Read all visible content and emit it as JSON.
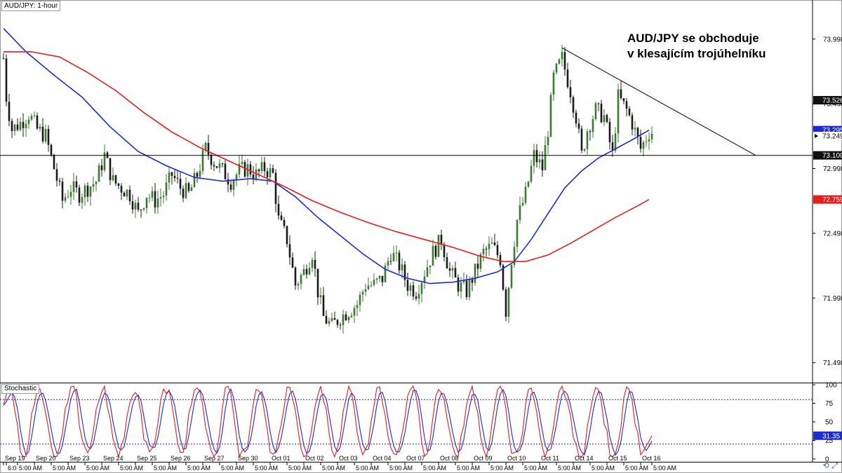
{
  "symbol_label": "AUD/JPY: 1-hour",
  "indicator_label": "Stochastic",
  "annotation": {
    "line1": "AUD/JPY se obchoduje",
    "line2": "v klesajícím trojúhelníku"
  },
  "corner_icons": "⟲ ⤢",
  "colors": {
    "bull": "#3c7a32",
    "bear": "#1a1a1a",
    "ma_fast": "#1c2bd1",
    "ma_slow": "#e81c1c",
    "stoch_k": "#e81c1c",
    "stoch_d": "#1c2bd1",
    "level_line": "#000000",
    "ma_slow_tag": "#e81c1c",
    "ma_fast_tag": "#1c2bd1",
    "price_tag": "#ffffff",
    "stoch_levels": "#2222cc"
  },
  "chart_data": [
    {
      "type": "candlestick",
      "title": "AUD/JPY: 1-hour",
      "ylim": [
        71.35,
        74.3
      ],
      "y_ticks": [
        {
          "value": 73.998,
          "label": "73.998"
        },
        {
          "value": 73.498,
          "label": "73.498"
        },
        {
          "value": 72.998,
          "label": "72.998"
        },
        {
          "value": 72.498,
          "label": "72.498"
        },
        {
          "value": 71.998,
          "label": "71.998"
        },
        {
          "value": 71.498,
          "label": "71.498"
        }
      ],
      "price_tags": [
        {
          "value": 73.526,
          "label": "73.526",
          "style": "dark"
        },
        {
          "value": 73.295,
          "label": "73.295",
          "style": "blue"
        },
        {
          "value": 73.249,
          "label": "73.249",
          "style": "white"
        },
        {
          "value": 73.1,
          "label": "73.100",
          "style": "dark"
        },
        {
          "value": 72.759,
          "label": "72.759",
          "style": "red"
        }
      ],
      "x_labels": [
        {
          "bar": 0,
          "label": "Sep 19"
        },
        {
          "bar": 11,
          "label": "Sep 20"
        },
        {
          "bar": 23,
          "label": "Sep 23"
        },
        {
          "bar": 35,
          "label": "Sep 24"
        },
        {
          "bar": 47,
          "label": "Sep 25"
        },
        {
          "bar": 59,
          "label": "Sep 26"
        },
        {
          "bar": 71,
          "label": "Sep 27"
        },
        {
          "bar": 83,
          "label": "Sep 30"
        },
        {
          "bar": 95,
          "label": "Oct 01"
        },
        {
          "bar": 107,
          "label": "Oct 02"
        },
        {
          "bar": 119,
          "label": "Oct 03"
        },
        {
          "bar": 131,
          "label": "Oct 04"
        },
        {
          "bar": 143,
          "label": "Oct 07"
        },
        {
          "bar": 155,
          "label": "Oct 08"
        },
        {
          "bar": 167,
          "label": "Oct 09"
        },
        {
          "bar": 179,
          "label": "Oct 10"
        },
        {
          "bar": 191,
          "label": "Oct 11"
        },
        {
          "bar": 203,
          "label": "Oct 14"
        },
        {
          "bar": 215,
          "label": "Oct 15"
        },
        {
          "bar": 227,
          "label": "Oct 16"
        }
      ],
      "x_time_labels": [
        {
          "bar": 1,
          "label": "6:0"
        },
        {
          "bar": 5,
          "label": "5:00 AM"
        },
        {
          "bar": 17,
          "label": "5:00 AM"
        },
        {
          "bar": 29,
          "label": "5:00 AM"
        },
        {
          "bar": 41,
          "label": "5:00 AM"
        },
        {
          "bar": 53,
          "label": "5:00 AM"
        },
        {
          "bar": 65,
          "label": "5:00 AM"
        },
        {
          "bar": 77,
          "label": "5:00 AM"
        },
        {
          "bar": 89,
          "label": "5:00 AM"
        },
        {
          "bar": 101,
          "label": "5:00 AM"
        },
        {
          "bar": 113,
          "label": "5:00 AM"
        },
        {
          "bar": 125,
          "label": "5:00 AM"
        },
        {
          "bar": 137,
          "label": "5:00 AM"
        },
        {
          "bar": 149,
          "label": "5:00 AM"
        },
        {
          "bar": 161,
          "label": "5:00 AM"
        },
        {
          "bar": 173,
          "label": "5:00 AM"
        },
        {
          "bar": 185,
          "label": "5:00 AM"
        },
        {
          "bar": 197,
          "label": "5:00 AM"
        },
        {
          "bar": 209,
          "label": "5:00 AM"
        },
        {
          "bar": 221,
          "label": "5:00 AM"
        },
        {
          "bar": 231,
          "label": "5:00 AM"
        }
      ],
      "close_path": [
        [
          0,
          73.85
        ],
        [
          1,
          73.55
        ],
        [
          3,
          73.3
        ],
        [
          6,
          73.35
        ],
        [
          9,
          73.42
        ],
        [
          12,
          73.3
        ],
        [
          15,
          73.25
        ],
        [
          18,
          73.0
        ],
        [
          21,
          72.75
        ],
        [
          24,
          72.85
        ],
        [
          27,
          72.8
        ],
        [
          30,
          72.85
        ],
        [
          33,
          72.9
        ],
        [
          36,
          73.1
        ],
        [
          39,
          72.9
        ],
        [
          42,
          72.85
        ],
        [
          45,
          72.8
        ],
        [
          48,
          72.65
        ],
        [
          51,
          72.8
        ],
        [
          54,
          72.75
        ],
        [
          57,
          72.8
        ],
        [
          60,
          72.95
        ],
        [
          63,
          72.85
        ],
        [
          66,
          72.8
        ],
        [
          69,
          72.95
        ],
        [
          72,
          73.15
        ],
        [
          75,
          73.05
        ],
        [
          78,
          72.98
        ],
        [
          81,
          72.9
        ],
        [
          84,
          72.98
        ],
        [
          87,
          73.0
        ],
        [
          90,
          72.95
        ],
        [
          93,
          73.0
        ],
        [
          96,
          72.95
        ],
        [
          98,
          72.6
        ],
        [
          101,
          72.45
        ],
        [
          104,
          72.1
        ],
        [
          107,
          72.2
        ],
        [
          110,
          72.35
        ],
        [
          112,
          72.05
        ],
        [
          114,
          71.85
        ],
        [
          117,
          71.78
        ],
        [
          120,
          71.85
        ],
        [
          123,
          71.9
        ],
        [
          126,
          71.95
        ],
        [
          129,
          72.1
        ],
        [
          132,
          72.1
        ],
        [
          135,
          72.15
        ],
        [
          138,
          72.35
        ],
        [
          141,
          72.25
        ],
        [
          144,
          72.1
        ],
        [
          147,
          72.05
        ],
        [
          150,
          72.2
        ],
        [
          153,
          72.35
        ],
        [
          156,
          72.45
        ],
        [
          159,
          72.2
        ],
        [
          162,
          72.1
        ],
        [
          165,
          72.05
        ],
        [
          168,
          72.2
        ],
        [
          171,
          72.35
        ],
        [
          174,
          72.4
        ],
        [
          177,
          72.3
        ],
        [
          179,
          71.9
        ],
        [
          181,
          72.3
        ],
        [
          183,
          72.6
        ],
        [
          186,
          72.8
        ],
        [
          189,
          73.1
        ],
        [
          192,
          73.0
        ],
        [
          194,
          73.3
        ],
        [
          196,
          73.7
        ],
        [
          199,
          73.85
        ],
        [
          202,
          73.6
        ],
        [
          204,
          73.4
        ],
        [
          206,
          73.1
        ],
        [
          208,
          73.3
        ],
        [
          211,
          73.45
        ],
        [
          214,
          73.4
        ],
        [
          217,
          73.1
        ],
        [
          219,
          73.55
        ],
        [
          222,
          73.45
        ],
        [
          224,
          73.35
        ],
        [
          227,
          73.15
        ],
        [
          230,
          73.28
        ]
      ],
      "total_bars": 232,
      "series": [
        {
          "name": "ma_fast",
          "points": [
            [
              0,
              74.08
            ],
            [
              8,
              73.9
            ],
            [
              18,
              73.72
            ],
            [
              28,
              73.55
            ],
            [
              38,
              73.32
            ],
            [
              48,
              73.13
            ],
            [
              58,
              73.02
            ],
            [
              68,
              72.93
            ],
            [
              78,
              72.9
            ],
            [
              88,
              72.92
            ],
            [
              96,
              72.9
            ],
            [
              104,
              72.78
            ],
            [
              112,
              72.62
            ],
            [
              120,
              72.48
            ],
            [
              128,
              72.34
            ],
            [
              136,
              72.22
            ],
            [
              144,
              72.15
            ],
            [
              152,
              72.11
            ],
            [
              160,
              72.12
            ],
            [
              168,
              72.15
            ],
            [
              176,
              72.2
            ],
            [
              182,
              72.28
            ],
            [
              188,
              72.45
            ],
            [
              194,
              72.65
            ],
            [
              200,
              72.85
            ],
            [
              206,
              72.98
            ],
            [
              212,
              73.08
            ],
            [
              218,
              73.15
            ],
            [
              224,
              73.22
            ],
            [
              230,
              73.295
            ]
          ]
        },
        {
          "name": "ma_slow",
          "points": [
            [
              0,
              73.9
            ],
            [
              10,
              73.9
            ],
            [
              20,
              73.86
            ],
            [
              30,
              73.74
            ],
            [
              40,
              73.6
            ],
            [
              50,
              73.43
            ],
            [
              60,
              73.28
            ],
            [
              70,
              73.16
            ],
            [
              80,
              73.06
            ],
            [
              90,
              72.96
            ],
            [
              100,
              72.86
            ],
            [
              110,
              72.75
            ],
            [
              120,
              72.66
            ],
            [
              130,
              72.58
            ],
            [
              140,
              72.51
            ],
            [
              150,
              72.45
            ],
            [
              160,
              72.39
            ],
            [
              170,
              72.32
            ],
            [
              178,
              72.28
            ],
            [
              186,
              72.28
            ],
            [
              194,
              72.33
            ],
            [
              202,
              72.42
            ],
            [
              210,
              72.52
            ],
            [
              218,
              72.62
            ],
            [
              226,
              72.71
            ],
            [
              230,
              72.759
            ]
          ]
        }
      ],
      "trendline": {
        "from": [
          199,
          73.93
        ],
        "to": [
          268,
          73.1
        ]
      },
      "horizontal_level": 73.1
    },
    {
      "type": "line",
      "title": "Stochastic",
      "ylim": [
        0,
        100
      ],
      "y_ticks": [
        {
          "value": 100,
          "label": "100"
        },
        {
          "value": 75,
          "label": "75"
        },
        {
          "value": 50,
          "label": "50"
        },
        {
          "value": 25,
          "label": "25"
        },
        {
          "value": 0,
          "label": "0"
        }
      ],
      "levels": [
        80,
        20
      ],
      "value_tag": {
        "value": 31.35,
        "label": "31.35"
      }
    }
  ]
}
